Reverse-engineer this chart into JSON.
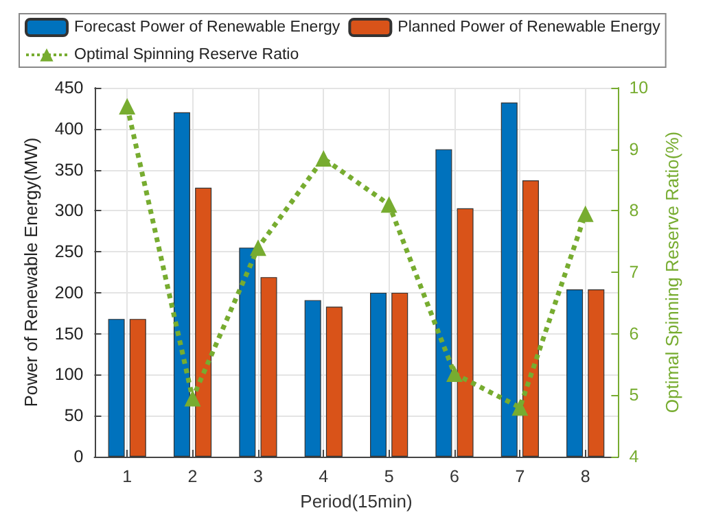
{
  "chart_data": {
    "type": "bar",
    "xlabel": "Period(15min)",
    "ylabel": "Power of Renewable Energy(MW)",
    "y2label": "Optimal Spinning Reserve Ratio(%)",
    "categories": [
      "1",
      "2",
      "3",
      "4",
      "5",
      "6",
      "7",
      "8"
    ],
    "series": [
      {
        "name": "Forecast Power of Renewable Energy",
        "color": "#0072bd",
        "values": [
          168,
          420,
          255,
          191,
          200,
          375,
          432,
          204
        ]
      },
      {
        "name": "Planned Power of Renewable Energy",
        "color": "#d95319",
        "values": [
          168,
          328,
          219,
          183,
          200,
          303,
          337,
          204
        ]
      },
      {
        "name": "Optimal Spinning Reserve Ratio",
        "type": "line",
        "axis": "y2",
        "color": "#77ac30",
        "marker": "triangle",
        "line_style": "dotted",
        "values": [
          9.7,
          4.95,
          7.4,
          8.85,
          8.1,
          5.35,
          4.8,
          7.95
        ]
      }
    ],
    "ylim": [
      0,
      450
    ],
    "yticks": [
      0,
      50,
      100,
      150,
      200,
      250,
      300,
      350,
      400,
      450
    ],
    "y2lim": [
      4,
      10
    ],
    "y2ticks": [
      4,
      5,
      6,
      7,
      8,
      9,
      10
    ],
    "grid": true,
    "legend": "top"
  }
}
